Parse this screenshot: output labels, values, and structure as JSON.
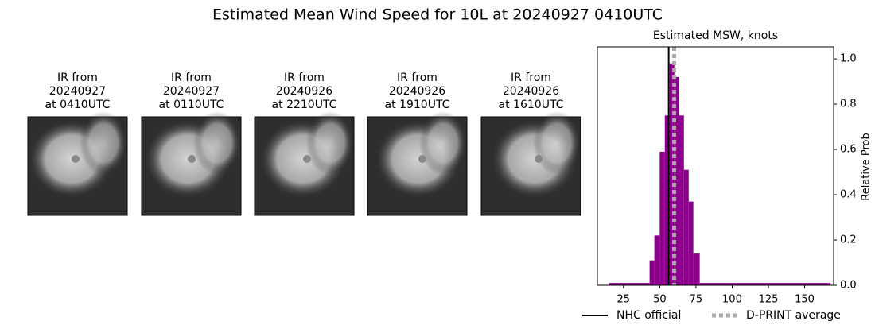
{
  "title": "Estimated Mean Wind Speed for 10L at 20240927 0410UTC",
  "panels": [
    {
      "lines": [
        "IR from",
        "20240927",
        "at 0410UTC"
      ]
    },
    {
      "lines": [
        "IR from",
        "20240927",
        "at 0110UTC"
      ]
    },
    {
      "lines": [
        "IR from",
        "20240926",
        "at 2210UTC"
      ]
    },
    {
      "lines": [
        "IR from",
        "20240926",
        "at 1910UTC"
      ]
    },
    {
      "lines": [
        "IR from",
        "20240926",
        "at 1610UTC"
      ]
    }
  ],
  "chart_data": {
    "type": "histogram",
    "title": "Estimated MSW, knots",
    "ylabel": "Relative Prob",
    "bins": [
      15,
      43,
      46.3,
      50,
      53.5,
      56.8,
      60.1,
      63.4,
      66.7,
      70,
      73.2,
      77.6,
      168
    ],
    "values": [
      0.01,
      0.11,
      0.22,
      0.59,
      0.75,
      0.98,
      0.92,
      0.75,
      0.51,
      0.37,
      0.14,
      0.01
    ],
    "color": "#8b008b",
    "xlim": [
      7,
      170
    ],
    "xticks": [
      25,
      50,
      75,
      100,
      125,
      150
    ],
    "ylim": [
      0,
      1.053
    ],
    "yticks": [
      {
        "value": 0,
        "label": "0.0"
      },
      0.2,
      0.4,
      0.6,
      0.8,
      {
        "value": 1,
        "label": "1.0"
      }
    ],
    "vlines": [
      {
        "name": "NHC official",
        "x": 56.2,
        "color": "#000000",
        "dashed": false
      },
      {
        "name": "D-PRINT average",
        "x": 60,
        "color": "#aaaaaa",
        "dashed": true
      }
    ]
  }
}
